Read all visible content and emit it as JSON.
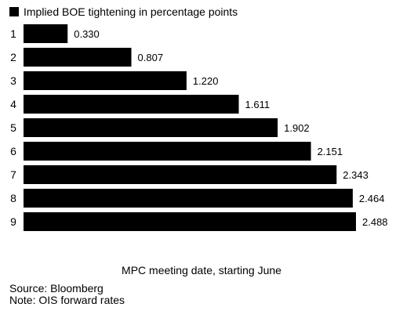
{
  "chart_data": {
    "type": "bar",
    "orientation": "horizontal",
    "categories": [
      "1",
      "2",
      "3",
      "4",
      "5",
      "6",
      "7",
      "8",
      "9"
    ],
    "series": [
      {
        "name": "Implied BOE tightening in percentage points",
        "values": [
          0.33,
          0.807,
          1.22,
          1.611,
          1.902,
          2.151,
          2.343,
          2.464,
          2.488
        ],
        "labels": [
          "0.330",
          "0.807",
          "1.220",
          "1.611",
          "1.902",
          "2.151",
          "2.343",
          "2.464",
          "2.488"
        ],
        "color": "#000000"
      }
    ],
    "xlabel": "MPC meeting date, starting June",
    "xlim": [
      0,
      2.488
    ],
    "grid": false,
    "legend": "top-left"
  },
  "footer": {
    "source": "Source: Bloomberg",
    "note": "Note: OIS forward rates"
  }
}
